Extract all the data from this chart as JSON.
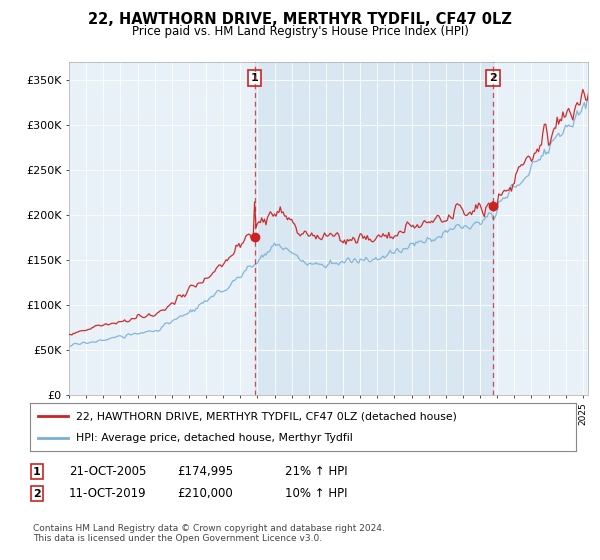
{
  "title": "22, HAWTHORN DRIVE, MERTHYR TYDFIL, CF47 0LZ",
  "subtitle": "Price paid vs. HM Land Registry's House Price Index (HPI)",
  "ylim": [
    0,
    370000
  ],
  "xlim_start": 1995.0,
  "xlim_end": 2025.3,
  "t1_date": 2005.83,
  "t1_price": 174995,
  "t1_str": "21-OCT-2005",
  "t1_pct": "21% ↑ HPI",
  "t2_date": 2019.78,
  "t2_price": 210000,
  "t2_str": "11-OCT-2019",
  "t2_pct": "10% ↑ HPI",
  "legend_line1": "22, HAWTHORN DRIVE, MERTHYR TYDFIL, CF47 0LZ (detached house)",
  "legend_line2": "HPI: Average price, detached house, Merthyr Tydfil",
  "footnote": "Contains HM Land Registry data © Crown copyright and database right 2024.\nThis data is licensed under the Open Government Licence v3.0.",
  "color_red": "#cc2222",
  "color_blue": "#7ab0d4",
  "color_dashed": "#cc2222",
  "background_plot": "#e8f0f8",
  "background_fig": "#ffffff",
  "grid_color": "#ffffff",
  "fill_color": "#cce0f0"
}
